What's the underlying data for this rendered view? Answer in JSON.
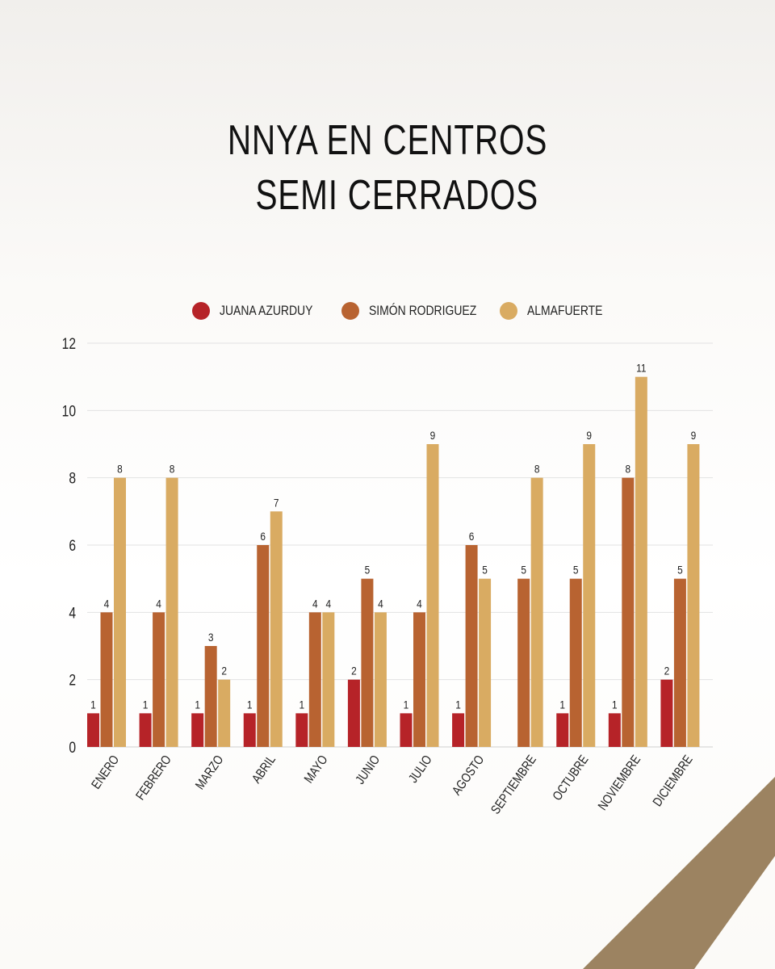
{
  "title": {
    "line1": "NNYA EN CENTROS",
    "line2": "SEMI CERRADOS"
  },
  "colors": {
    "series": [
      "#b62328",
      "#b86331",
      "#d9ab62"
    ],
    "accent_band": "#9c8361",
    "grid": "#e2e2e2"
  },
  "chart_data": {
    "type": "bar",
    "categories": [
      "ENERO",
      "FEBRERO",
      "MARZO",
      "ABRIL",
      "MAYO",
      "JUNIO",
      "JULIO",
      "AGOSTO",
      "SEPTIEMBRE",
      "OCTUBRE",
      "NOVIEMBRE",
      "DICIEMBRE"
    ],
    "series": [
      {
        "name": "JUANA AZURDUY",
        "values": [
          1,
          1,
          1,
          1,
          1,
          2,
          1,
          1,
          null,
          1,
          1,
          2
        ]
      },
      {
        "name": "SIMÓN RODRIGUEZ",
        "values": [
          4,
          4,
          3,
          6,
          4,
          5,
          4,
          6,
          5,
          5,
          8,
          5
        ]
      },
      {
        "name": "ALMAFUERTE",
        "values": [
          8,
          8,
          2,
          7,
          4,
          4,
          9,
          5,
          8,
          9,
          11,
          9
        ]
      }
    ],
    "yticks": [
      0,
      2,
      4,
      6,
      8,
      10,
      12
    ],
    "ylim": [
      0,
      12
    ],
    "grid": true,
    "legend": "top",
    "data_labels": true
  }
}
